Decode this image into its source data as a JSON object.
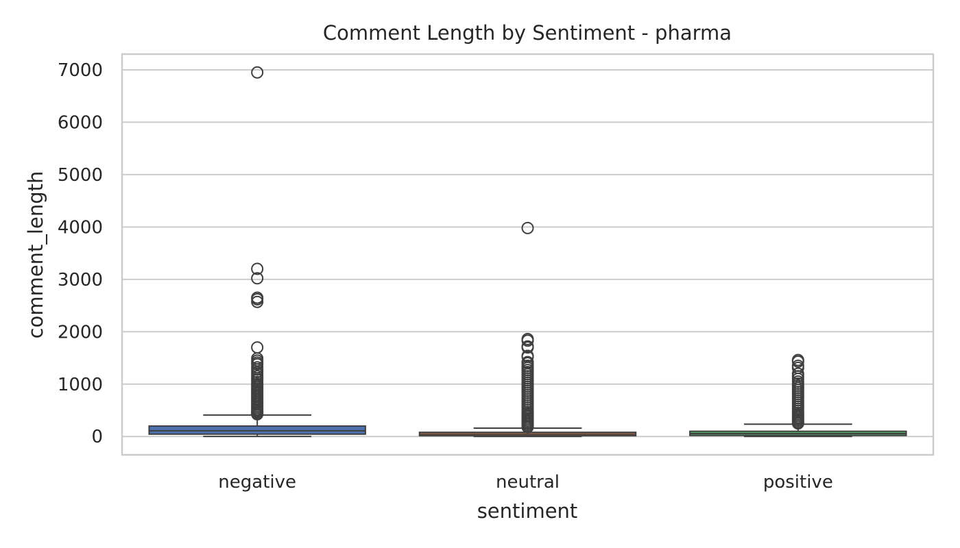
{
  "chart_data": {
    "type": "box",
    "title": "Comment Length by Sentiment - pharma",
    "xlabel": "sentiment",
    "ylabel": "comment_length",
    "categories": [
      "negative",
      "neutral",
      "positive"
    ],
    "ylim": [
      -350,
      7300
    ],
    "yticks": [
      0,
      1000,
      2000,
      3000,
      4000,
      5000,
      6000,
      7000
    ],
    "ytick_labels": [
      "0",
      "1000",
      "2000",
      "3000",
      "4000",
      "5000",
      "6000",
      "7000"
    ],
    "grid": true,
    "legend": "none",
    "colors": {
      "negative": "#4c72b0",
      "neutral": "#dd8452",
      "positive": "#55a868",
      "line": "#3f3f3f",
      "grid": "#cccccc",
      "frame": "#cccccc"
    },
    "boxes": [
      {
        "category": "negative",
        "whisker_low": 2,
        "q1": 45,
        "median": 110,
        "q3": 200,
        "whisker_high": 410,
        "outliers": [
          6950,
          3200,
          3020,
          2650,
          2620,
          2570,
          1700,
          1490,
          1450,
          1410,
          1380,
          1320,
          1280,
          1230,
          1190,
          1150,
          1110,
          1080,
          1040,
          1000,
          970,
          940,
          910,
          880,
          850,
          820,
          790,
          760,
          730,
          700,
          670,
          640,
          610,
          580,
          550,
          520,
          500,
          480,
          460,
          440,
          425
        ]
      },
      {
        "category": "neutral",
        "whisker_low": 1,
        "q1": 15,
        "median": 45,
        "q3": 80,
        "whisker_high": 160,
        "outliers": [
          3980,
          1860,
          1830,
          1720,
          1700,
          1540,
          1520,
          1420,
          1400,
          1350,
          1310,
          1270,
          1230,
          1190,
          1150,
          1110,
          1070,
          1030,
          990,
          950,
          910,
          870,
          830,
          790,
          750,
          710,
          670,
          630,
          590,
          550,
          510,
          470,
          440,
          410,
          380,
          350,
          320,
          290,
          260,
          230,
          200,
          180
        ]
      },
      {
        "category": "positive",
        "whisker_low": 1,
        "q1": 20,
        "median": 55,
        "q3": 100,
        "whisker_high": 235,
        "outliers": [
          1460,
          1430,
          1350,
          1310,
          1200,
          1150,
          1100,
          1050,
          1010,
          970,
          930,
          890,
          850,
          810,
          770,
          730,
          690,
          650,
          610,
          570,
          530,
          490,
          450,
          420,
          390,
          360,
          330,
          300,
          270,
          250
        ]
      }
    ]
  }
}
